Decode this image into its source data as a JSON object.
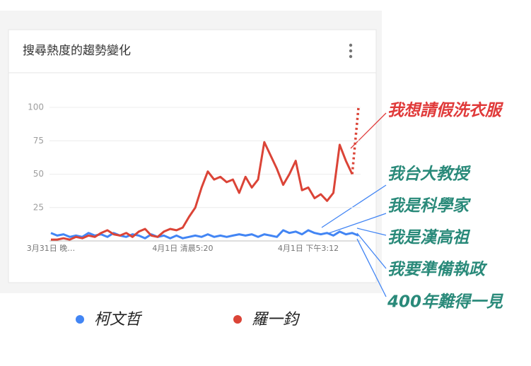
{
  "chart_data": {
    "type": "line",
    "title": "搜尋熱度的趨勢變化",
    "categories": [
      "3月31日 晚…",
      null,
      null,
      null,
      null,
      null,
      null,
      null,
      null,
      null,
      null,
      null,
      null,
      null,
      null,
      null,
      null,
      null,
      null,
      null,
      null,
      "4月1日 清晨5:20",
      null,
      null,
      null,
      null,
      null,
      null,
      null,
      null,
      null,
      null,
      null,
      null,
      null,
      null,
      null,
      null,
      null,
      null,
      null,
      "4月1日 下午3:12",
      null,
      null,
      null,
      null,
      null,
      null,
      null,
      null
    ],
    "series": [
      {
        "name": "柯文哲",
        "color": "#4285f4",
        "values": [
          6,
          4,
          5,
          3,
          4,
          3,
          6,
          4,
          5,
          3,
          6,
          4,
          3,
          5,
          4,
          2,
          5,
          3,
          4,
          2,
          4,
          2,
          3,
          4,
          3,
          5,
          3,
          4,
          3,
          4,
          5,
          4,
          5,
          3,
          5,
          4,
          3,
          8,
          6,
          7,
          5,
          8,
          6,
          5,
          6,
          4,
          7,
          5,
          6,
          4
        ]
      },
      {
        "name": "羅一鈞",
        "color": "#db4437",
        "values": [
          1,
          1,
          2,
          1,
          3,
          2,
          4,
          3,
          6,
          8,
          5,
          4,
          6,
          3,
          7,
          9,
          4,
          3,
          7,
          9,
          8,
          10,
          18,
          25,
          40,
          52,
          46,
          48,
          44,
          46,
          36,
          48,
          40,
          46,
          74,
          64,
          54,
          42,
          50,
          60,
          38,
          40,
          32,
          35,
          30,
          36,
          72,
          60,
          50,
          100
        ],
        "partial_last": true
      }
    ],
    "ylim": [
      0,
      100
    ],
    "yticks": [
      25,
      50,
      75,
      100
    ],
    "grid": true,
    "annotations": [
      {
        "text": "我想請假洗衣服",
        "color": "#e03a3a"
      },
      {
        "text": "我台大教授",
        "color": "#2a8a7a"
      },
      {
        "text": "我是科學家",
        "color": "#2a8a7a"
      },
      {
        "text": "我是漢高祖",
        "color": "#2a8a7a"
      },
      {
        "text": "我要準備執政",
        "color": "#2a8a7a"
      },
      {
        "text": "400年難得一見",
        "color": "#2a8a7a"
      }
    ]
  }
}
